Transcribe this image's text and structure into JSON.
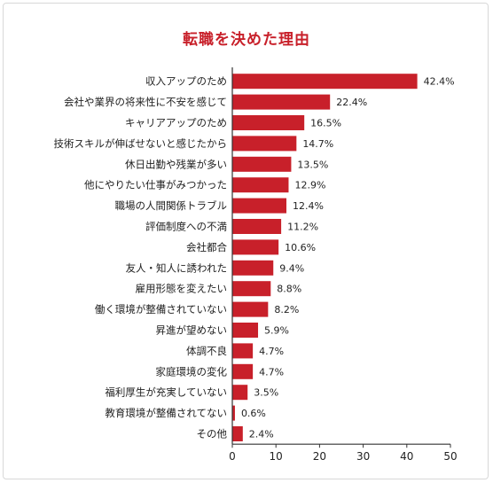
{
  "chart_data": {
    "type": "bar",
    "orientation": "horizontal",
    "title": "転職を決めた理由",
    "categories": [
      "収入アップのため",
      "会社や業界の将来性に不安を感じて",
      "キャリアアップのため",
      "技術スキルが伸ばせないと感じたから",
      "休日出勤や残業が多い",
      "他にやりたい仕事がみつかった",
      "職場の人間関係トラブル",
      "評価制度への不満",
      "会社都合",
      "友人・知人に誘われた",
      "雇用形態を変えたい",
      "働く環境が整備されていない",
      "昇進が望めない",
      "体調不良",
      "家庭環境の変化",
      "福利厚生が充実していない",
      "教育環境が整備されてない",
      "その他"
    ],
    "values": [
      42.4,
      22.4,
      16.5,
      14.7,
      13.5,
      12.9,
      12.4,
      11.2,
      10.6,
      9.4,
      8.8,
      8.2,
      5.9,
      4.7,
      4.7,
      3.5,
      0.6,
      2.4
    ],
    "value_labels": [
      "42.4%",
      "22.4%",
      "16.5%",
      "14.7%",
      "13.5%",
      "12.9%",
      "12.4%",
      "11.2%",
      "10.6%",
      "9.4%",
      "8.8%",
      "8.2%",
      "5.9%",
      "4.7%",
      "4.7%",
      "3.5%",
      "0.6%",
      "2.4%"
    ],
    "xlim": [
      0,
      50
    ],
    "xticks": [
      "0",
      "10",
      "20",
      "30",
      "40",
      "50"
    ],
    "grid": false,
    "legend": "none",
    "bar_color": "#c8202a",
    "axis_color": "#333333"
  }
}
